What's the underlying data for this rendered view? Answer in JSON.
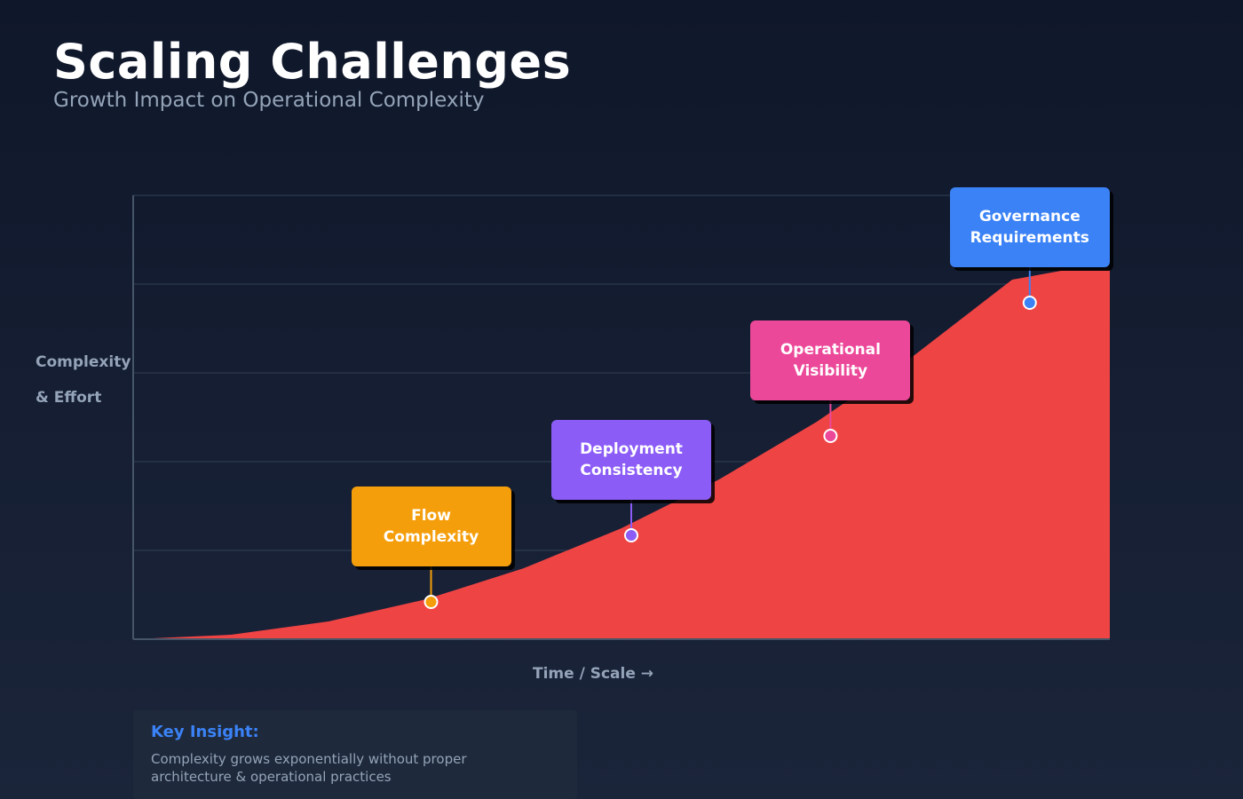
{
  "header": {
    "title": "Scaling Challenges",
    "subtitle": "Growth Impact on Operational Complexity"
  },
  "chart_data": {
    "type": "area",
    "title": "Scaling Challenges",
    "subtitle": "Growth Impact on Operational Complexity",
    "ylabel": "Complexity & Effort",
    "ylabel_lines": [
      "Complexity",
      "& Effort"
    ],
    "xlabel": "Time / Scale →",
    "grid": true,
    "x_ticks_shown": false,
    "y_ticks_shown": false,
    "xlim": [
      0,
      1
    ],
    "ylim": [
      0,
      1
    ],
    "fill_color": "#ef4444",
    "series": [
      {
        "x": [
          0,
          0.1,
          0.2,
          0.3,
          0.4,
          0.5,
          0.6,
          0.7,
          0.8,
          0.9,
          0.95,
          1.0
        ],
        "y": [
          0,
          0.01,
          0.04,
          0.09,
          0.16,
          0.25,
          0.36,
          0.49,
          0.64,
          0.81,
          0.83,
          0.83
        ]
      }
    ],
    "annotations": [
      {
        "label_lines": [
          "Flow",
          "Complexity"
        ],
        "x": 0.305,
        "y": 0.084,
        "color": "#f59e0b"
      },
      {
        "label_lines": [
          "Deployment",
          "Consistency"
        ],
        "x": 0.51,
        "y": 0.234,
        "color": "#8b5cf6"
      },
      {
        "label_lines": [
          "Operational",
          "Visibility"
        ],
        "x": 0.714,
        "y": 0.458,
        "color": "#ec4899"
      },
      {
        "label_lines": [
          "Governance",
          "Requirements"
        ],
        "x": 0.918,
        "y": 0.758,
        "color": "#3b82f6"
      }
    ]
  },
  "insight": {
    "title": "Key Insight:",
    "text": "Complexity grows exponentially without proper architecture & operational practices"
  },
  "colors": {
    "background": "#0f172a",
    "axis": "#475569",
    "grid": "#334155",
    "area": "#ef4444",
    "accent": "#3b82f6",
    "muted_text": "#94a3b8"
  }
}
